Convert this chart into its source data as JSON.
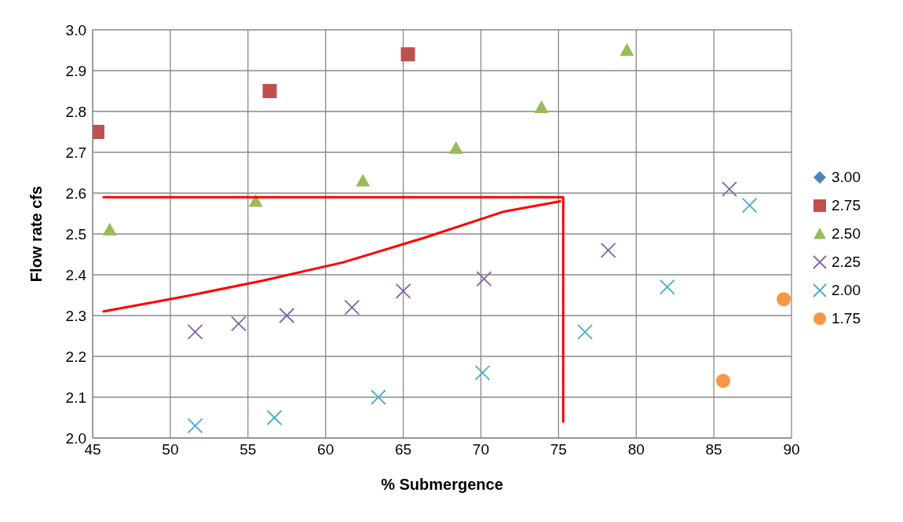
{
  "chart_data": {
    "type": "scatter",
    "xlabel": "% Submergence",
    "ylabel": "Flow rate cfs",
    "xlim": [
      45,
      90
    ],
    "xticks": [
      45,
      50,
      55,
      60,
      65,
      70,
      75,
      80,
      85,
      90
    ],
    "ylim": [
      2.0,
      3.0
    ],
    "yticks": [
      {
        "value": 2.0,
        "label": "2.0"
      },
      2.1,
      2.2,
      2.3,
      2.4,
      2.5,
      2.6,
      2.7,
      2.8,
      2.9,
      {
        "value": 3.0,
        "label": "3.0"
      }
    ],
    "grid": true,
    "legend": "right",
    "series": [
      {
        "name": "3.00",
        "color": "#4f81bd",
        "marker": "diamond"
      },
      {
        "name": "2.75",
        "color": "#c0504d",
        "marker": "square",
        "x": [
          45.3,
          56.4,
          65.3
        ],
        "values": [
          2.75,
          2.85,
          2.94
        ]
      },
      {
        "name": "2.50",
        "color": "#9bbb59",
        "marker": "triangle",
        "x": [
          46.1,
          55.5,
          62.4,
          68.4,
          73.9,
          79.4
        ],
        "values": [
          2.51,
          2.58,
          2.63,
          2.71,
          2.81,
          2.95
        ]
      },
      {
        "name": "2.25",
        "color": "#8064a2",
        "marker": "cross",
        "x": [
          51.6,
          54.4,
          57.5,
          61.7,
          65.0,
          70.2,
          78.2,
          86.0
        ],
        "values": [
          2.26,
          2.28,
          2.3,
          2.32,
          2.36,
          2.39,
          2.46,
          2.61
        ]
      },
      {
        "name": "2.00",
        "color": "#4bacc6",
        "marker": "cross",
        "x": [
          51.6,
          56.7,
          63.4,
          70.1,
          76.7,
          82.0,
          87.3
        ],
        "values": [
          2.03,
          2.05,
          2.1,
          2.16,
          2.26,
          2.37,
          2.57
        ]
      },
      {
        "name": "1.75",
        "color": "#f79646",
        "marker": "circle",
        "x": [
          85.6,
          89.5
        ],
        "values": [
          2.14,
          2.34
        ]
      },
      {
        "type": "line",
        "color": "#ff0000",
        "marker": "none",
        "x": [
          45.7,
          75.3,
          75.3
        ],
        "values": [
          2.59,
          2.59,
          2.04
        ]
      },
      {
        "type": "line",
        "color": "#ff0000",
        "marker": "none",
        "x": [
          45.7,
          50.7,
          55.9,
          61.1,
          66.3,
          71.5,
          75.1
        ],
        "values": [
          2.31,
          2.345,
          2.385,
          2.43,
          2.49,
          2.555,
          2.58
        ]
      }
    ]
  }
}
